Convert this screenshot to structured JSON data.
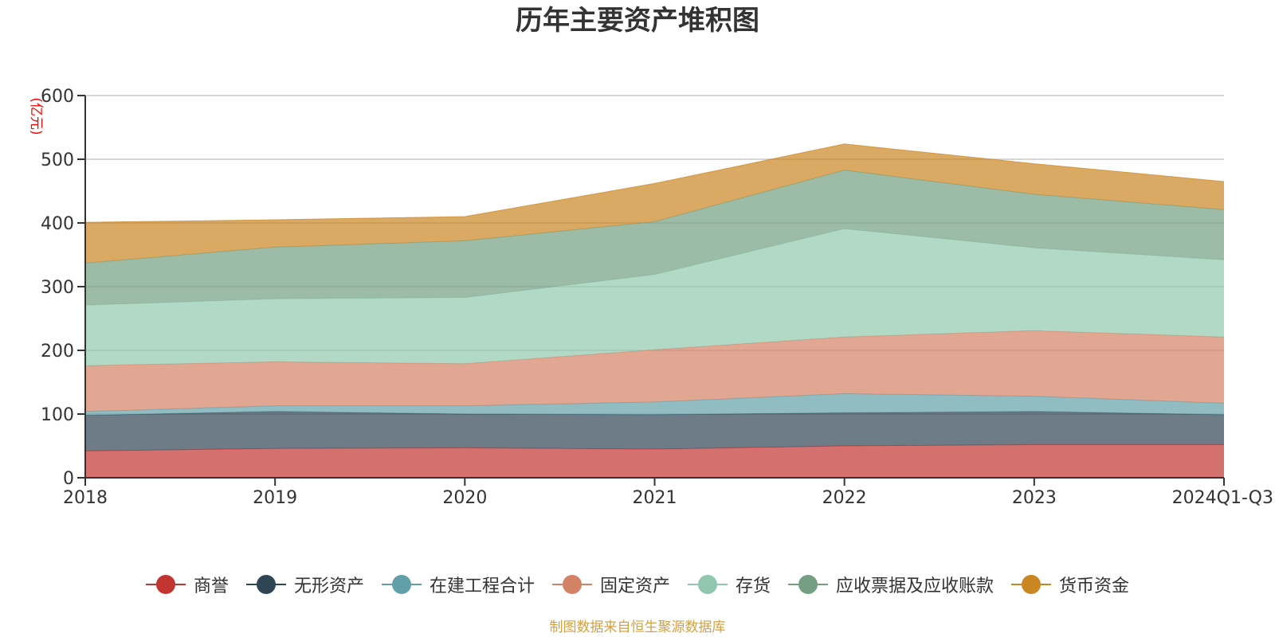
{
  "chart_data": {
    "type": "area",
    "stacked": true,
    "title": "历年主要资产堆积图",
    "ylabel": "(亿元)",
    "xlabel": "",
    "ylim": [
      0,
      600
    ],
    "y_ticks": [
      "0",
      "100",
      "200",
      "300",
      "400",
      "500",
      "600"
    ],
    "categories": [
      "2018",
      "2019",
      "2020",
      "2021",
      "2022",
      "2023",
      "2024Q1-Q3"
    ],
    "grid": true,
    "legend_position": "bottom",
    "series": [
      {
        "name": "商誉",
        "color": "#c23531",
        "values": [
          42,
          46,
          47,
          45,
          50,
          52,
          52
        ]
      },
      {
        "name": "无形资产",
        "color": "#2f4554",
        "values": [
          56,
          58,
          53,
          54,
          52,
          52,
          47
        ]
      },
      {
        "name": "在建工程合计",
        "color": "#61a0a8",
        "values": [
          6,
          9,
          13,
          20,
          30,
          24,
          18
        ]
      },
      {
        "name": "固定资产",
        "color": "#d48265",
        "values": [
          72,
          69,
          66,
          82,
          89,
          103,
          104
        ]
      },
      {
        "name": "存货",
        "color": "#91c7ae",
        "values": [
          95,
          99,
          104,
          118,
          170,
          130,
          121
        ]
      },
      {
        "name": "应收票据及应收账款",
        "color": "#749f83",
        "values": [
          66,
          81,
          89,
          83,
          92,
          84,
          79
        ]
      },
      {
        "name": "货币资金",
        "color": "#ca8622",
        "values": [
          64,
          43,
          38,
          60,
          41,
          48,
          44
        ]
      }
    ]
  },
  "source_note": "制图数据来自恒生聚源数据库"
}
